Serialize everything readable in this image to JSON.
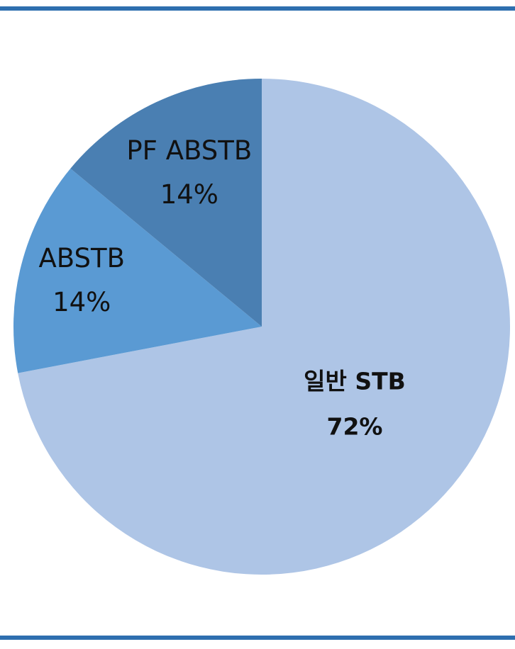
{
  "colors": {
    "rule": "#2e6faf",
    "slice_large": "#aec5e6",
    "slice_abstb": "#5a9ad3",
    "slice_pf": "#4a7fb2",
    "label_text": "#111111"
  },
  "chart_data": {
    "type": "pie",
    "title": "",
    "legend": "none",
    "slices": [
      {
        "label": "일반 STB",
        "value": 72,
        "percent_label": "72%"
      },
      {
        "label": "ABSTB",
        "value": 14,
        "percent_label": "14%"
      },
      {
        "label": "PF ABSTB",
        "value": 14,
        "percent_label": "14%"
      }
    ]
  }
}
